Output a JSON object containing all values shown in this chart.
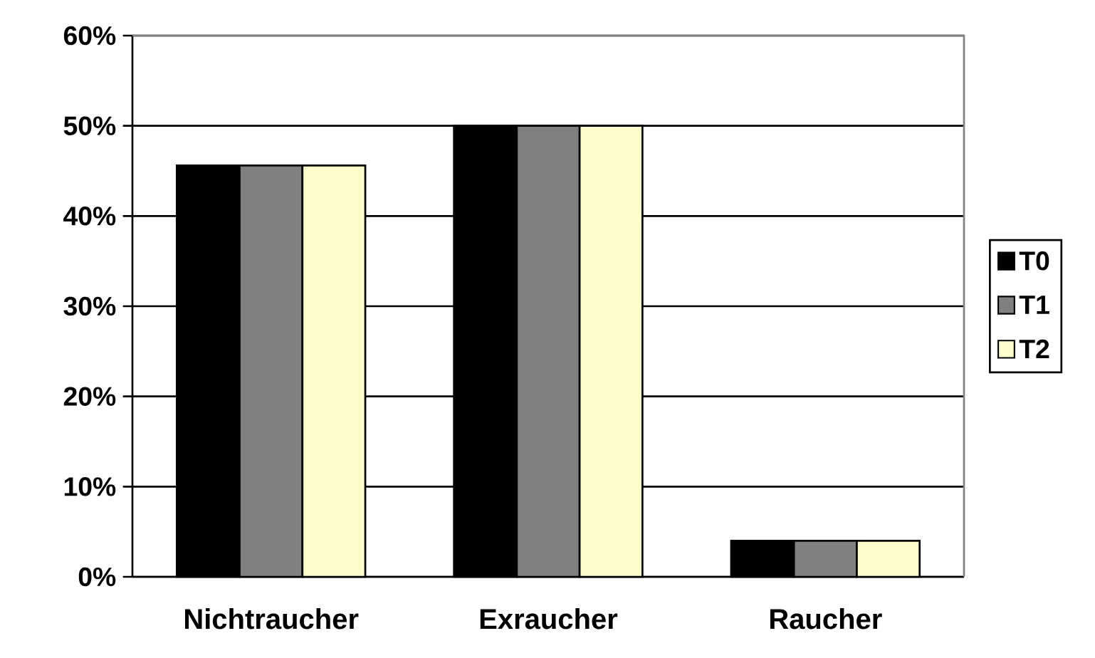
{
  "chart_data": {
    "type": "bar",
    "categories": [
      "Nichtraucher",
      "Exraucher",
      "Raucher"
    ],
    "series": [
      {
        "name": "T0",
        "color": "#000000",
        "values": [
          45.6,
          50,
          4
        ]
      },
      {
        "name": "T1",
        "color": "#808080",
        "values": [
          45.6,
          50,
          4
        ]
      },
      {
        "name": "T2",
        "color": "#ffffcc",
        "values": [
          45.6,
          50,
          4
        ]
      }
    ],
    "ylim": [
      0,
      60
    ],
    "yticks": [
      {
        "value": 0,
        "label": "0%"
      },
      {
        "value": 10,
        "label": "10%"
      },
      {
        "value": 20,
        "label": "20%"
      },
      {
        "value": 30,
        "label": "30%"
      },
      {
        "value": 40,
        "label": "40%"
      },
      {
        "value": 50,
        "label": "50%"
      },
      {
        "value": 60,
        "label": "60%"
      }
    ],
    "grid": "y",
    "legend": "right"
  }
}
